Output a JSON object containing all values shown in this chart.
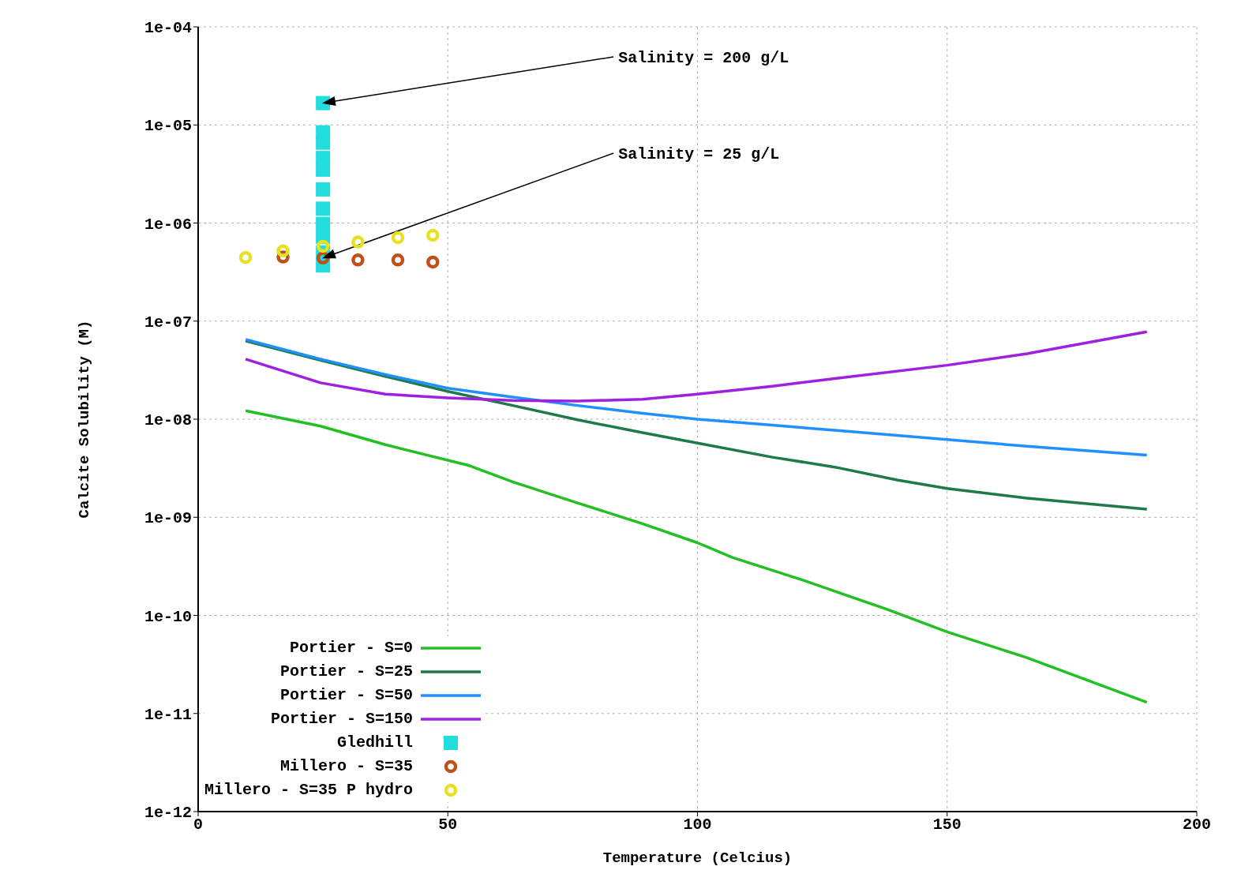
{
  "chart_data": {
    "type": "line",
    "xlabel": "Temperature (Celcius)",
    "ylabel": "Calcite Solubility (M)",
    "log": "y",
    "xlim": [
      0,
      200
    ],
    "xticks": [
      0,
      50,
      100,
      150,
      200
    ],
    "ylim": [
      1e-12,
      0.0001
    ],
    "yticks": [
      {
        "value": 1e-12,
        "label": "1e-12"
      },
      {
        "value": 1e-11,
        "label": "1e-11"
      },
      {
        "value": 1e-10,
        "label": "1e-10"
      },
      {
        "value": 1e-09,
        "label": "1e-09"
      },
      {
        "value": 1e-08,
        "label": "1e-08"
      },
      {
        "value": 1e-07,
        "label": "1e-07"
      },
      {
        "value": 1e-06,
        "label": "1e-06"
      },
      {
        "value": 1e-05,
        "label": "1e-05"
      },
      {
        "value": 0.0001,
        "label": "1e-04"
      }
    ],
    "grid": true,
    "legend": "bottom left",
    "line_style": "solid",
    "series": [
      {
        "name": "Portier - S=0",
        "color": "#22c022",
        "marker": "none",
        "x": [
          9.5,
          24.5,
          37.5,
          54,
          63,
          76,
          89,
          100,
          107,
          121,
          138,
          150,
          166,
          190
        ],
        "values": [
          1.22e-08,
          8.5e-09,
          5.5e-09,
          3.4e-09,
          2.3e-09,
          1.4e-09,
          8.6e-10,
          5.5e-10,
          3.9e-10,
          2.3e-10,
          1.15e-10,
          6.8e-11,
          3.7e-11,
          1.3e-11
        ]
      },
      {
        "name": "Portier - S=25",
        "color": "#1e7a4a",
        "marker": "none",
        "x": [
          9.5,
          24.5,
          37.5,
          50,
          63,
          76,
          89,
          100,
          115,
          127.5,
          140,
          150,
          166,
          190
        ],
        "values": [
          6.3e-08,
          4e-08,
          2.73e-08,
          1.92e-08,
          1.38e-08,
          9.85e-09,
          7.3e-09,
          5.7e-09,
          4.1e-09,
          3.25e-09,
          2.4e-09,
          1.97e-09,
          1.57e-09,
          1.21e-09
        ]
      },
      {
        "name": "Portier - S=50",
        "color": "#1e90ff",
        "marker": "none",
        "x": [
          9.5,
          24.5,
          37.5,
          50,
          63,
          76,
          89,
          100,
          115,
          127.5,
          150,
          166,
          190
        ],
        "values": [
          6.5e-08,
          4.1e-08,
          2.85e-08,
          2.07e-08,
          1.68e-08,
          1.38e-08,
          1.15e-08,
          1e-08,
          8.7e-09,
          7.7e-09,
          6.2e-09,
          5.3e-09,
          4.3e-09
        ]
      },
      {
        "name": "Portier - S=150",
        "color": "#a020e0",
        "marker": "none",
        "x": [
          9.5,
          24.5,
          37.5,
          50,
          63,
          76,
          89,
          100,
          115,
          127.5,
          150,
          166,
          190
        ],
        "values": [
          4.1e-08,
          2.35e-08,
          1.8e-08,
          1.65e-08,
          1.55e-08,
          1.53e-08,
          1.6e-08,
          1.8e-08,
          2.17e-08,
          2.6e-08,
          3.55e-08,
          4.65e-08,
          7.8e-08
        ]
      },
      {
        "name": "Gledhill",
        "type": "scatter",
        "color": "#22dddd",
        "marker": "square",
        "x": [
          25,
          25,
          25,
          25,
          25,
          25,
          25,
          25,
          25,
          25,
          25
        ],
        "values": [
          1.67e-05,
          8.4e-06,
          6.6e-06,
          4.6e-06,
          3.5e-06,
          2.2e-06,
          1.4e-06,
          9.8e-07,
          7.2e-07,
          5e-07,
          3.7e-07
        ]
      },
      {
        "name": "Millero - S=35",
        "type": "scatter",
        "color": "#c0501a",
        "marker": "circle",
        "x": [
          17,
          25,
          32,
          40,
          47
        ],
        "values": [
          4.5e-07,
          4.4e-07,
          4.2e-07,
          4.2e-07,
          4e-07
        ]
      },
      {
        "name": "Millero - S=35 P hydro",
        "type": "scatter",
        "color": "#e8e020",
        "marker": "circle",
        "x": [
          9.5,
          17,
          25,
          32,
          40,
          47
        ],
        "values": [
          4.45e-07,
          5.2e-07,
          5.8e-07,
          6.4e-07,
          7.1e-07,
          7.5e-07
        ]
      }
    ],
    "annotations": [
      {
        "text": "Salinity = 200 g/L",
        "x": 25,
        "y": 1.67e-05
      },
      {
        "text": "Salinity = 25 g/L",
        "x": 25,
        "y": 4.4e-07
      }
    ]
  }
}
